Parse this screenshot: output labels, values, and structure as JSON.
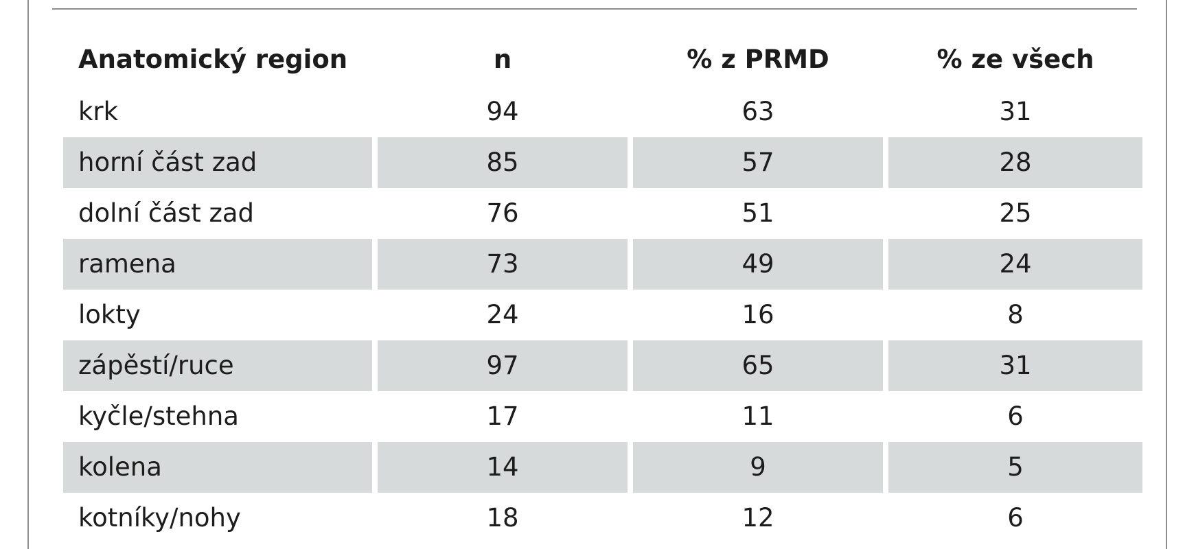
{
  "table": {
    "headers": [
      "Anatomický region",
      "n",
      "% z PRMD",
      "% ze všech"
    ],
    "rows": [
      [
        "krk",
        "94",
        "63",
        "31"
      ],
      [
        "horní část zad",
        "85",
        "57",
        "28"
      ],
      [
        "dolní část zad",
        "76",
        "51",
        "25"
      ],
      [
        "ramena",
        "73",
        "49",
        "24"
      ],
      [
        "lokty",
        "24",
        "16",
        "8"
      ],
      [
        "zápěstí/ruce",
        "97",
        "65",
        "31"
      ],
      [
        "kyčle/stehna",
        "17",
        "11",
        "6"
      ],
      [
        "kolena",
        "14",
        "9",
        "5"
      ],
      [
        "kotníky/nohy",
        "18",
        "12",
        "6"
      ]
    ]
  },
  "colors": {
    "shaded_row": "#d7dada",
    "rule": "#8e8e8e",
    "text": "#1c1c1c"
  }
}
